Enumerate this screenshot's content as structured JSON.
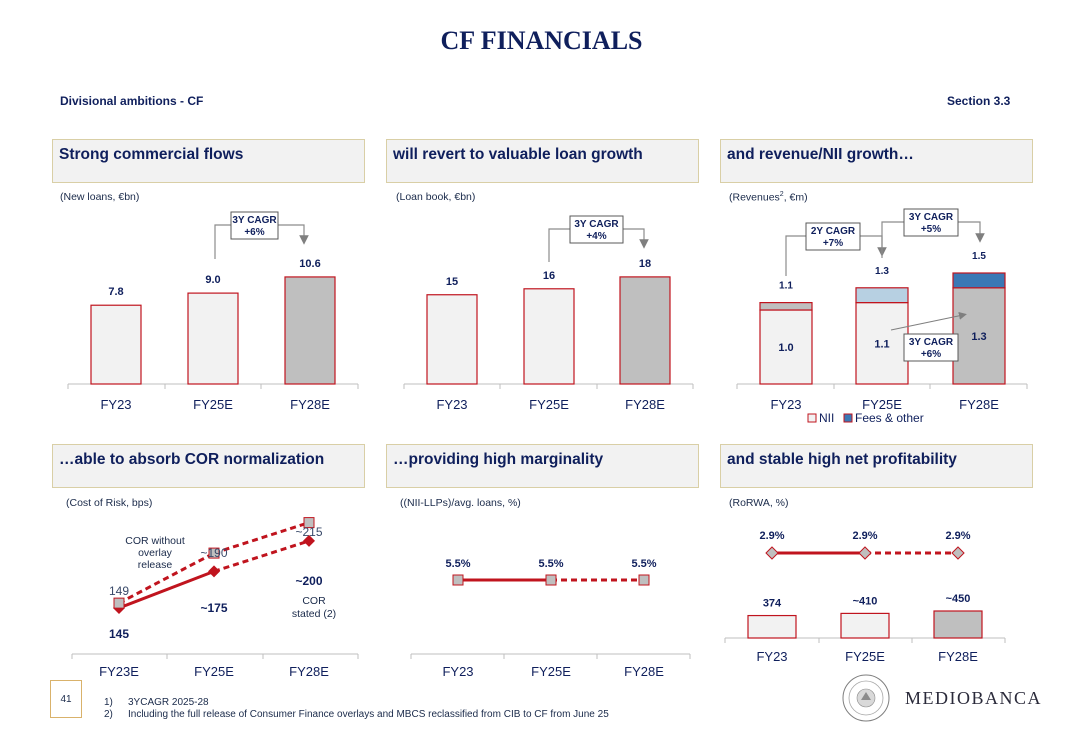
{
  "title": "CF FINANCIALS",
  "subtitle_left": "Divisional ambitions - CF",
  "subtitle_right": "Section 3.3",
  "colors": {
    "red": "#c0141e",
    "light_fill": "#f2f2f2",
    "grey_fill": "#bfbfbf",
    "light_blue": "#b7d0e2",
    "blue": "#3a78b5",
    "navy": "#0f1f5c"
  },
  "panels": [
    {
      "title": "Strong commercial flows",
      "unit": "(New loans, €bn)"
    },
    {
      "title": "will revert to valuable loan growth",
      "unit": "(Loan book, €bn)"
    },
    {
      "title": "and revenue/NII growth…",
      "unit_main": "(Revenues",
      "unit_sup": "2",
      "unit_tail": ",  €m)"
    },
    {
      "title": "…able to absorb COR normalization",
      "unit": "(Cost of Risk, bps)"
    },
    {
      "title": "…providing high marginality",
      "unit": "((NII-LLPs)/avg. loans, %)"
    },
    {
      "title": "and stable high net profitability",
      "unit": "(RoRWA, %)"
    }
  ],
  "chart_data": [
    {
      "type": "bar",
      "title": "Strong commercial flows",
      "ylabel": "New loans, €bn",
      "categories": [
        "FY23",
        "FY25E",
        "FY28E"
      ],
      "values": [
        7.8,
        9.0,
        10.6
      ],
      "value_labels": [
        "7.8",
        "9.0",
        "10.6"
      ],
      "ylim": [
        0,
        12
      ],
      "annotations": [
        {
          "text_line1": "3Y CAGR",
          "text_line2": "+6%",
          "from": "FY25E",
          "to": "FY28E"
        }
      ]
    },
    {
      "type": "bar",
      "title": "will revert to valuable loan growth",
      "ylabel": "Loan book, €bn",
      "categories": [
        "FY23",
        "FY25E",
        "FY28E"
      ],
      "values": [
        15,
        16,
        18
      ],
      "value_labels": [
        "15",
        "16",
        "18"
      ],
      "ylim": [
        0,
        20
      ],
      "annotations": [
        {
          "text_line1": "3Y CAGR",
          "text_line2": "+4%",
          "from": "FY25E",
          "to": "FY28E"
        }
      ]
    },
    {
      "type": "bar",
      "stacked": true,
      "title": "and revenue/NII growth…",
      "ylabel": "Revenues, €m",
      "categories": [
        "FY23",
        "FY25E",
        "FY28E"
      ],
      "series": [
        {
          "name": "NII",
          "values": [
            1.0,
            1.1,
            1.3
          ],
          "labels": [
            "1.0",
            "1.1",
            "1.3"
          ]
        },
        {
          "name": "Fees & other",
          "values": [
            0.1,
            0.2,
            0.2
          ]
        }
      ],
      "totals": [
        1.1,
        1.3,
        1.5
      ],
      "total_labels": [
        "1.1",
        "1.3",
        "1.5"
      ],
      "ylim": [
        0,
        1.6
      ],
      "legend": [
        "NII",
        "Fees & other"
      ],
      "annotations": [
        {
          "text_line1": "2Y CAGR",
          "text_line2": "+7%",
          "from": "FY23",
          "to": "FY25E"
        },
        {
          "text_line1": "3Y CAGR",
          "text_line2": "+5%",
          "from": "FY25E",
          "to": "FY28E"
        },
        {
          "text_line1": "3Y CAGR",
          "text_line2": "+6%",
          "note": "NII growth FY25E to FY28E"
        }
      ]
    },
    {
      "type": "line",
      "title": "…able to absorb COR normalization",
      "ylabel": "Cost of Risk, bps",
      "categories": [
        "FY23E",
        "FY25E",
        "FY28E"
      ],
      "series": [
        {
          "name": "COR stated (2)",
          "values": [
            145,
            175,
            200
          ],
          "labels": [
            "145",
            "~175",
            "~200"
          ]
        },
        {
          "name": "COR without overlay release",
          "values": [
            149,
            190,
            215
          ],
          "labels": [
            "149",
            "~190",
            "~215"
          ]
        }
      ],
      "series_label_a": "COR without",
      "series_label_b": "overlay",
      "series_label_c": "release",
      "series_label_d": "COR",
      "series_label_e": "stated (2)",
      "ylim": [
        100,
        240
      ]
    },
    {
      "type": "line",
      "title": "…providing high marginality",
      "ylabel": "(NII-LLPs)/avg. loans, %",
      "categories": [
        "FY23",
        "FY25E",
        "FY28E"
      ],
      "values": [
        5.5,
        5.5,
        5.5
      ],
      "value_labels": [
        "5.5%",
        "5.5%",
        "5.5%"
      ]
    },
    {
      "type": "bar",
      "title": "and stable high net profitability",
      "ylabel": "RoRWA, %",
      "categories": [
        "FY23",
        "FY25E",
        "FY28E"
      ],
      "values": [
        374,
        410,
        450
      ],
      "value_labels": [
        "374",
        "~410",
        "~450"
      ],
      "ylim": [
        0,
        1150
      ],
      "line_series": {
        "name": "RoRWA",
        "values": [
          2.9,
          2.9,
          2.9
        ],
        "labels": [
          "2.9%",
          "2.9%",
          "2.9%"
        ]
      }
    }
  ],
  "footer": {
    "page": "41",
    "note1_num": "1)",
    "note1": "3YCAGR 2025-28",
    "note2_num": "2)",
    "note2": "Including the full release of Consumer Finance overlays and MBCS reclassified from CIB to CF from June 25",
    "brand": "MEDIOBANCA",
    "seal_text": "MEDIOBANCA · BANCA DI CREDITO FINANZIARIO"
  }
}
